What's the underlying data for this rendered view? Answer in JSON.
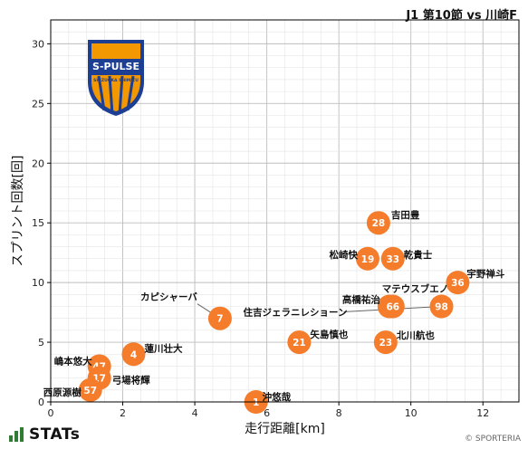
{
  "header": {
    "title": "J1 第10節 vs 川崎F"
  },
  "footer": {
    "brand": "STATs",
    "copyright": "© SPORTERIA"
  },
  "logo": {
    "text_top": "S-PULSE",
    "text_bottom": "SHIZUOKA SHIMIZU",
    "primary": "#f39800",
    "secondary": "#1c3f94"
  },
  "colors": {
    "point": "#f47c2a",
    "grid": "#cccccc",
    "axis": "#000000"
  },
  "chart_data": {
    "type": "scatter",
    "xlabel": "走行距離[km]",
    "ylabel": "スプリント回数[回]",
    "xlim": [
      0,
      13
    ],
    "ylim": [
      0,
      32
    ],
    "xticks": [
      0,
      2,
      4,
      6,
      8,
      10,
      12
    ],
    "yticks": [
      0,
      5,
      10,
      15,
      20,
      25,
      30
    ],
    "points": [
      {
        "number": "28",
        "name": "吉田豊",
        "x": 9.1,
        "y": 15
      },
      {
        "number": "19",
        "name": "松崎快",
        "x": 8.8,
        "y": 12
      },
      {
        "number": "33",
        "name": "乾貴士",
        "x": 9.5,
        "y": 12
      },
      {
        "number": "36",
        "name": "宇野禅斗",
        "x": 11.3,
        "y": 10
      },
      {
        "number": "6",
        "name": "高橋祐治",
        "x": 9.4,
        "y": 8
      },
      {
        "number": "66",
        "name": "マテウスブエノ",
        "x": 9.5,
        "y": 8
      },
      {
        "number": "98",
        "name": "住吉ジェラニレショーン",
        "x": 10.85,
        "y": 8
      },
      {
        "number": "7",
        "name": "カピシャーバ",
        "x": 4.7,
        "y": 7
      },
      {
        "number": "21",
        "name": "矢島慎也",
        "x": 6.9,
        "y": 5
      },
      {
        "number": "23",
        "name": "北川航也",
        "x": 9.3,
        "y": 5
      },
      {
        "number": "4",
        "name": "蓮川壮大",
        "x": 2.3,
        "y": 4
      },
      {
        "number": "47",
        "name": "嶋本悠大",
        "x": 1.35,
        "y": 3
      },
      {
        "number": "17",
        "name": "弓場将輝",
        "x": 1.35,
        "y": 2
      },
      {
        "number": "57",
        "name": "西原源樹",
        "x": 1.1,
        "y": 1
      },
      {
        "number": "1",
        "name": "沖悠哉",
        "x": 5.7,
        "y": 0
      }
    ]
  }
}
